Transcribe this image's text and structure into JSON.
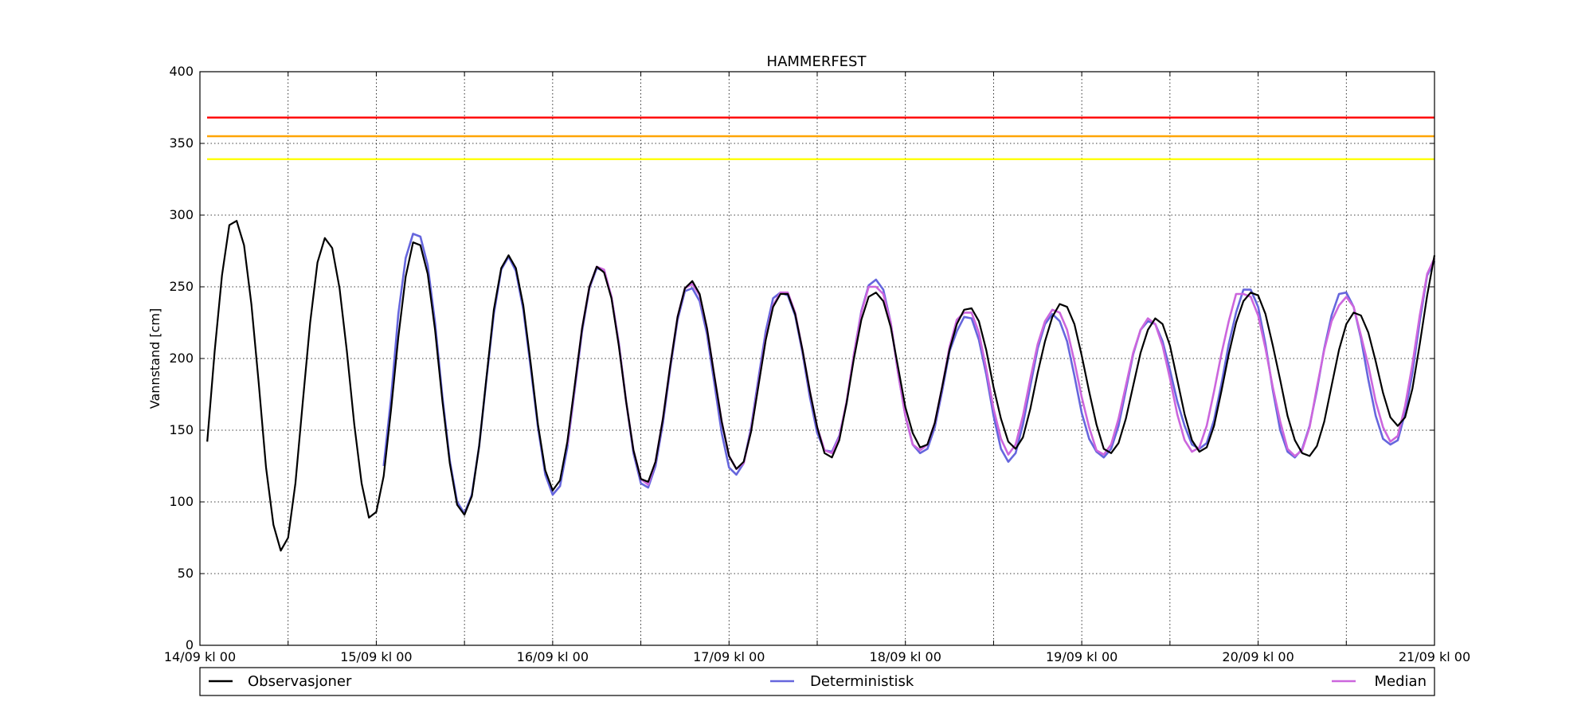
{
  "chart_data": {
    "type": "line",
    "title": "HAMMERFEST",
    "xlabel": "",
    "ylabel": "Vannstand [cm]",
    "ylim": [
      0,
      400
    ],
    "yticks": [
      0,
      50,
      100,
      150,
      200,
      250,
      300,
      350,
      400
    ],
    "x_unit": "hours since 14/09 kl 00",
    "xlim": [
      0,
      168
    ],
    "xticks": [
      0,
      24,
      48,
      72,
      96,
      120,
      144,
      168
    ],
    "xtick_labels": [
      "14/09 kl 00",
      "15/09 kl 00",
      "16/09 kl 00",
      "17/09 kl 00",
      "18/09 kl 00",
      "19/09 kl 00",
      "20/09 kl 00",
      "21/09 kl 00"
    ],
    "minor_xticks": [
      12,
      36,
      60,
      84,
      108,
      132,
      156
    ],
    "grid": true,
    "thresholds": [
      {
        "value": 368,
        "color": "#ff0000"
      },
      {
        "value": 355,
        "color": "#ffa500"
      },
      {
        "value": 339,
        "color": "#ffff00"
      }
    ],
    "legend_position": "bottom",
    "series": [
      {
        "name": "Observasjoner",
        "color": "#000000",
        "x": [
          1,
          2,
          3,
          4,
          5,
          6,
          7,
          8,
          9,
          10,
          11,
          12,
          13,
          14,
          15,
          16,
          17,
          18,
          19,
          20,
          21,
          22,
          23,
          24,
          25,
          26,
          27,
          28,
          29,
          30,
          31,
          32,
          33,
          34,
          35,
          36,
          37,
          38,
          39,
          40,
          41,
          42,
          43,
          44,
          45,
          46,
          47,
          48,
          49,
          50,
          51,
          52,
          53,
          54,
          55,
          56,
          57,
          58,
          59,
          60,
          61,
          62,
          63,
          64,
          65,
          66,
          67,
          68,
          69,
          70,
          71,
          72,
          73,
          74,
          75,
          76,
          77,
          78,
          79,
          80,
          81,
          82,
          83,
          84,
          85,
          86,
          87,
          88,
          89,
          90,
          91,
          92,
          93,
          94,
          95,
          96,
          97,
          98,
          99,
          100,
          101,
          102,
          103,
          104,
          105,
          106,
          107,
          108,
          109,
          110,
          111,
          112,
          113,
          114,
          115,
          116,
          117,
          118,
          119,
          120,
          121,
          122,
          123,
          124,
          125,
          126,
          127,
          128,
          129,
          130,
          131,
          132,
          133,
          134,
          135,
          136,
          137,
          138,
          139,
          140,
          141,
          142,
          143,
          144,
          145,
          146,
          147,
          148,
          149,
          150,
          151,
          152,
          153,
          154,
          155,
          156,
          157,
          158,
          159,
          160,
          161,
          162,
          163,
          164,
          165,
          166,
          167,
          168
        ],
        "y": [
          142,
          205,
          258,
          293,
          296,
          279,
          238,
          183,
          124,
          84,
          66,
          75,
          113,
          170,
          225,
          267,
          284,
          277,
          249,
          205,
          154,
          113,
          89,
          93,
          118,
          164,
          215,
          257,
          281,
          279,
          259,
          220,
          170,
          127,
          98,
          91,
          104,
          139,
          187,
          234,
          263,
          272,
          263,
          237,
          197,
          154,
          122,
          108,
          115,
          142,
          181,
          221,
          250,
          264,
          260,
          242,
          209,
          170,
          136,
          116,
          114,
          128,
          158,
          195,
          229,
          249,
          254,
          245,
          221,
          188,
          156,
          132,
          123,
          128,
          149,
          181,
          213,
          236,
          245,
          245,
          231,
          206,
          177,
          152,
          134,
          131,
          143,
          169,
          200,
          227,
          243,
          246,
          240,
          222,
          194,
          166,
          148,
          138,
          140,
          155,
          180,
          206,
          224,
          234,
          235,
          226,
          206,
          180,
          158,
          142,
          137,
          145,
          165,
          190,
          212,
          229,
          238,
          236,
          224,
          202,
          177,
          154,
          137,
          134,
          141,
          158,
          181,
          204,
          220,
          228,
          224,
          209,
          185,
          161,
          143,
          135,
          138,
          153,
          177,
          203,
          225,
          240,
          246,
          244,
          231,
          209,
          185,
          160,
          143,
          134,
          132,
          139,
          156,
          181,
          206,
          224,
          232,
          230,
          218,
          198,
          176,
          159,
          153,
          159,
          179,
          210,
          244,
          272
        ]
      },
      {
        "name": "Deterministisk",
        "color": "#6666dd",
        "x": [
          25,
          26,
          27,
          28,
          29,
          30,
          31,
          32,
          33,
          34,
          35,
          36,
          37,
          38,
          39,
          40,
          41,
          42,
          43,
          44,
          45,
          46,
          47,
          48,
          49,
          50,
          51,
          52,
          53,
          54,
          55,
          56,
          57,
          58,
          59,
          60,
          61,
          62,
          63,
          64,
          65,
          66,
          67,
          68,
          69,
          70,
          71,
          72,
          73,
          74,
          75,
          76,
          77,
          78,
          79,
          80,
          81,
          82,
          83,
          84,
          85,
          86,
          87,
          88,
          89,
          90,
          91,
          92,
          93,
          94,
          95,
          96,
          97,
          98,
          99,
          100,
          101,
          102,
          103,
          104,
          105,
          106,
          107,
          108,
          109,
          110,
          111,
          112,
          113,
          114,
          115,
          116,
          117,
          118,
          119,
          120,
          121,
          122,
          123,
          124,
          125,
          126,
          127,
          128,
          129,
          130,
          131,
          132,
          133,
          134,
          135,
          136,
          137,
          138,
          139,
          140,
          141,
          142,
          143,
          144,
          145,
          146,
          147,
          148,
          149,
          150,
          151,
          152,
          153,
          154,
          155,
          156,
          157,
          158,
          159,
          160,
          161,
          162,
          163,
          164,
          165,
          166,
          167,
          168
        ],
        "y": [
          125,
          172,
          231,
          270,
          287,
          285,
          265,
          225,
          173,
          129,
          100,
          92,
          105,
          139,
          186,
          231,
          262,
          271,
          261,
          234,
          194,
          152,
          119,
          105,
          111,
          138,
          178,
          219,
          249,
          263,
          261,
          243,
          211,
          170,
          134,
          113,
          110,
          125,
          155,
          193,
          227,
          247,
          249,
          240,
          217,
          183,
          148,
          124,
          119,
          127,
          152,
          186,
          219,
          242,
          246,
          244,
          230,
          204,
          173,
          148,
          136,
          135,
          146,
          169,
          203,
          233,
          251,
          255,
          248,
          225,
          190,
          160,
          140,
          134,
          137,
          152,
          177,
          205,
          219,
          229,
          228,
          213,
          189,
          160,
          137,
          128,
          134,
          154,
          181,
          207,
          224,
          231,
          226,
          212,
          188,
          162,
          144,
          135,
          131,
          137,
          153,
          178,
          203,
          220,
          226,
          224,
          212,
          192,
          170,
          153,
          140,
          137,
          141,
          157,
          182,
          210,
          232,
          248,
          248,
          236,
          210,
          178,
          150,
          135,
          131,
          137,
          153,
          178,
          207,
          230,
          245,
          246,
          236,
          214,
          185,
          160,
          144,
          140,
          143,
          162,
          190,
          226,
          258,
          268
        ]
      },
      {
        "name": "Median",
        "color": "#cc66dd",
        "x": [
          50,
          51,
          52,
          53,
          54,
          55,
          56,
          57,
          58,
          59,
          60,
          61,
          62,
          63,
          64,
          65,
          66,
          67,
          68,
          69,
          70,
          71,
          72,
          73,
          74,
          75,
          76,
          77,
          78,
          79,
          80,
          81,
          82,
          83,
          84,
          85,
          86,
          87,
          88,
          89,
          90,
          91,
          92,
          93,
          94,
          95,
          96,
          97,
          98,
          99,
          100,
          101,
          102,
          103,
          104,
          105,
          106,
          107,
          108,
          109,
          110,
          111,
          112,
          113,
          114,
          115,
          116,
          117,
          118,
          119,
          120,
          121,
          122,
          123,
          124,
          125,
          126,
          127,
          128,
          129,
          130,
          131,
          132,
          133,
          134,
          135,
          136,
          137,
          138,
          139,
          140,
          141,
          142,
          143,
          144,
          145,
          146,
          147,
          148,
          149,
          150,
          151,
          152,
          153,
          154,
          155,
          156,
          157,
          158,
          159,
          160,
          161,
          162,
          163,
          164,
          165,
          166,
          167,
          168
        ],
        "y": [
          140,
          180,
          221,
          250,
          264,
          262,
          243,
          210,
          170,
          136,
          116,
          112,
          128,
          158,
          195,
          229,
          249,
          252,
          244,
          221,
          188,
          156,
          132,
          123,
          127,
          150,
          182,
          214,
          237,
          246,
          246,
          232,
          206,
          177,
          152,
          136,
          134,
          145,
          170,
          203,
          232,
          250,
          250,
          245,
          225,
          190,
          160,
          140,
          136,
          140,
          155,
          180,
          208,
          227,
          232,
          232,
          218,
          193,
          165,
          144,
          133,
          140,
          160,
          186,
          210,
          226,
          234,
          232,
          220,
          198,
          173,
          152,
          136,
          133,
          140,
          158,
          181,
          204,
          220,
          228,
          224,
          209,
          186,
          161,
          143,
          135,
          138,
          153,
          177,
          203,
          226,
          245,
          245,
          243,
          230,
          207,
          180,
          156,
          137,
          132,
          136,
          152,
          180,
          206,
          226,
          237,
          243,
          236,
          216,
          195,
          170,
          152,
          142,
          146,
          167,
          196,
          230,
          259,
          270
        ]
      }
    ]
  }
}
